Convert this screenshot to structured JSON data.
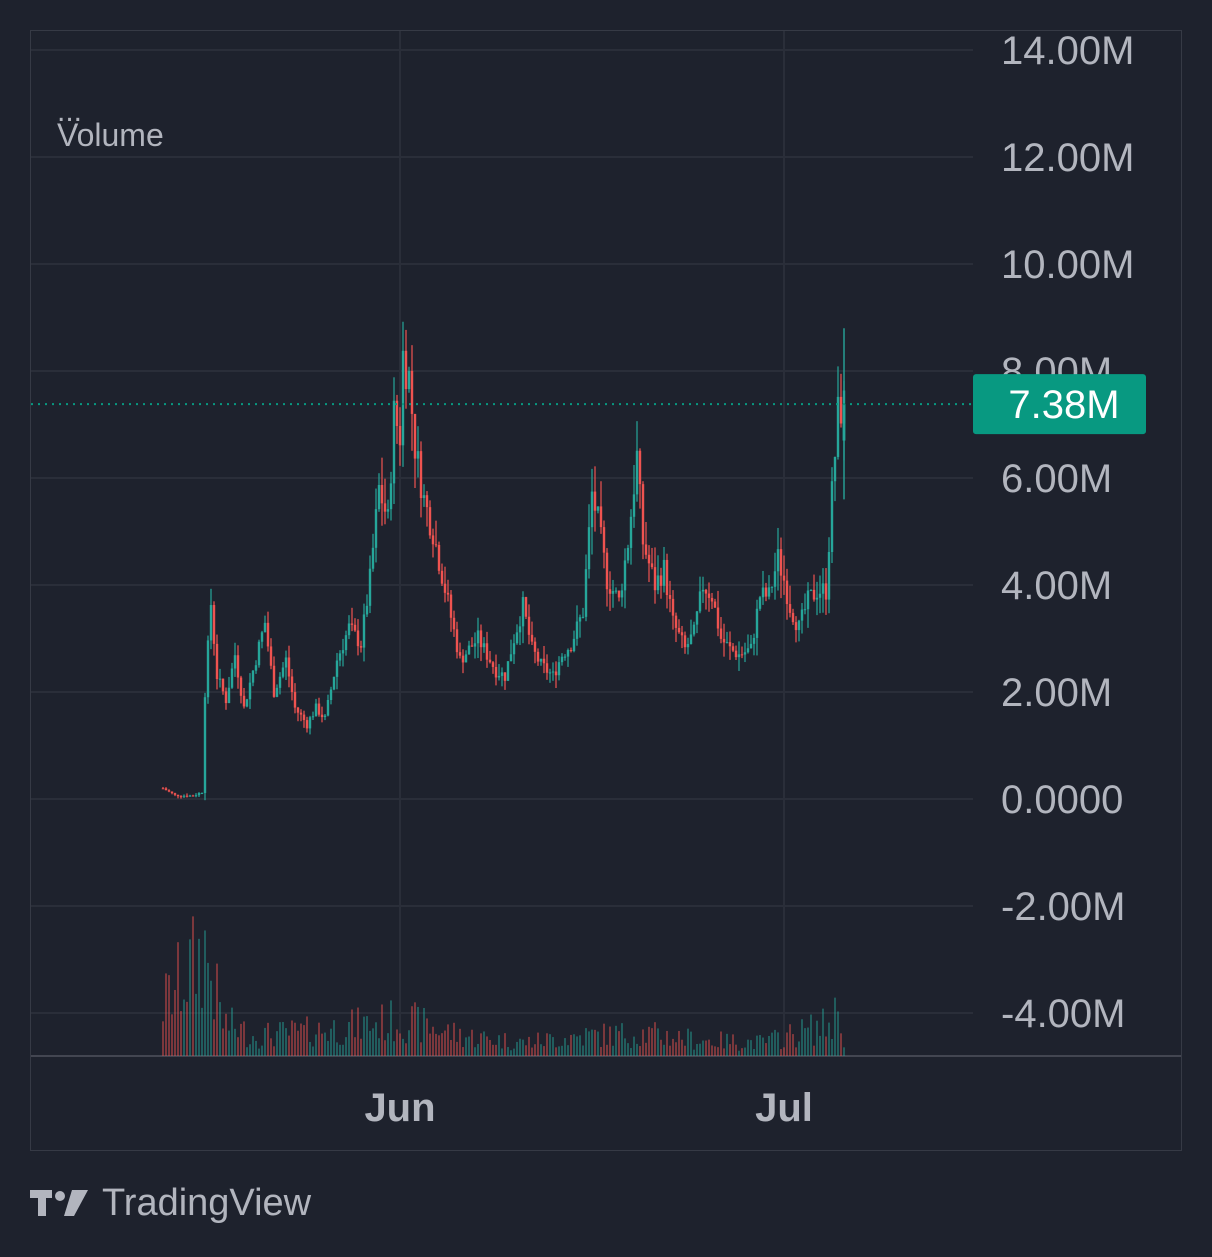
{
  "legend": {
    "menu": "...",
    "name": "Volume"
  },
  "footer": {
    "brand": "TradingView"
  },
  "colors": {
    "up": "#26a69a",
    "down": "#ef5350",
    "background": "#1e222d",
    "grid": "#2a2e39",
    "axis_text": "#b2b5be",
    "badge": "#089981"
  },
  "chart_data": {
    "type": "candlestick",
    "title": "",
    "y_ticks": [
      {
        "value": 14000000,
        "label": "14.00M"
      },
      {
        "value": 12000000,
        "label": "12.00M"
      },
      {
        "value": 10000000,
        "label": "10.00M"
      },
      {
        "value": 8000000,
        "label": "8.00M"
      },
      {
        "value": 6000000,
        "label": "6.00M"
      },
      {
        "value": 4000000,
        "label": "4.00M"
      },
      {
        "value": 2000000,
        "label": "2.00M"
      },
      {
        "value": 0,
        "label": "0.0000"
      },
      {
        "value": -2000000,
        "label": "-2.00M"
      },
      {
        "value": -4000000,
        "label": "-4.00M"
      }
    ],
    "x_ticks": [
      {
        "label": "Jun",
        "index": 79
      },
      {
        "label": "Jul",
        "index": 207
      }
    ],
    "ylim": [
      -4800000,
      14400000
    ],
    "xlim": [
      -45,
      268
    ],
    "last_value": {
      "value": 7380000,
      "label": "7.38M"
    },
    "grid": true,
    "series_anchors": [
      [
        0,
        200000
      ],
      [
        4,
        70000
      ],
      [
        10,
        60000
      ],
      [
        13,
        130000
      ],
      [
        14,
        2000000
      ],
      [
        16,
        3650000
      ],
      [
        18,
        2300000
      ],
      [
        21,
        1850000
      ],
      [
        24,
        2700000
      ],
      [
        27,
        1700000
      ],
      [
        30,
        2400000
      ],
      [
        34,
        3300000
      ],
      [
        37,
        2000000
      ],
      [
        41,
        2600000
      ],
      [
        44,
        1700000
      ],
      [
        48,
        1400000
      ],
      [
        51,
        1700000
      ],
      [
        54,
        1500000
      ],
      [
        58,
        2600000
      ],
      [
        62,
        3200000
      ],
      [
        66,
        2900000
      ],
      [
        69,
        4100000
      ],
      [
        72,
        5800000
      ],
      [
        75,
        5200000
      ],
      [
        77,
        7200000
      ],
      [
        79,
        6800000
      ],
      [
        80,
        8300000
      ],
      [
        82,
        7900000
      ],
      [
        84,
        6600000
      ],
      [
        87,
        5600000
      ],
      [
        90,
        5000000
      ],
      [
        93,
        4200000
      ],
      [
        96,
        3400000
      ],
      [
        99,
        2600000
      ],
      [
        102,
        2800000
      ],
      [
        105,
        3000000
      ],
      [
        108,
        2700000
      ],
      [
        111,
        2400000
      ],
      [
        114,
        2300000
      ],
      [
        117,
        3000000
      ],
      [
        120,
        3600000
      ],
      [
        123,
        2800000
      ],
      [
        126,
        2500000
      ],
      [
        130,
        2300000
      ],
      [
        133,
        2700000
      ],
      [
        136,
        2900000
      ],
      [
        140,
        3500000
      ],
      [
        143,
        5700000
      ],
      [
        145,
        5200000
      ],
      [
        148,
        4100000
      ],
      [
        152,
        3700000
      ],
      [
        155,
        4800000
      ],
      [
        158,
        6400000
      ],
      [
        160,
        4800000
      ],
      [
        164,
        4000000
      ],
      [
        167,
        4300000
      ],
      [
        170,
        3300000
      ],
      [
        174,
        2800000
      ],
      [
        177,
        3100000
      ],
      [
        180,
        4000000
      ],
      [
        183,
        3800000
      ],
      [
        186,
        3000000
      ],
      [
        189,
        2800000
      ],
      [
        192,
        2700000
      ],
      [
        196,
        2800000
      ],
      [
        199,
        3800000
      ],
      [
        202,
        3800000
      ],
      [
        205,
        4500000
      ],
      [
        207,
        4100000
      ],
      [
        209,
        3600000
      ],
      [
        212,
        3200000
      ],
      [
        215,
        3700000
      ],
      [
        218,
        3900000
      ],
      [
        221,
        3900000
      ],
      [
        223,
        5700000
      ],
      [
        225,
        7200000
      ],
      [
        227,
        7380000
      ]
    ],
    "volume_anchors": [
      [
        0,
        2300000
      ],
      [
        14,
        4700000
      ],
      [
        20,
        1500000
      ],
      [
        30,
        900000
      ],
      [
        50,
        1100000
      ],
      [
        80,
        1600000
      ],
      [
        100,
        900000
      ],
      [
        120,
        600000
      ],
      [
        140,
        900000
      ],
      [
        160,
        1000000
      ],
      [
        180,
        700000
      ],
      [
        200,
        600000
      ],
      [
        222,
        1400000
      ],
      [
        226,
        2300000
      ],
      [
        227,
        700000
      ]
    ]
  }
}
